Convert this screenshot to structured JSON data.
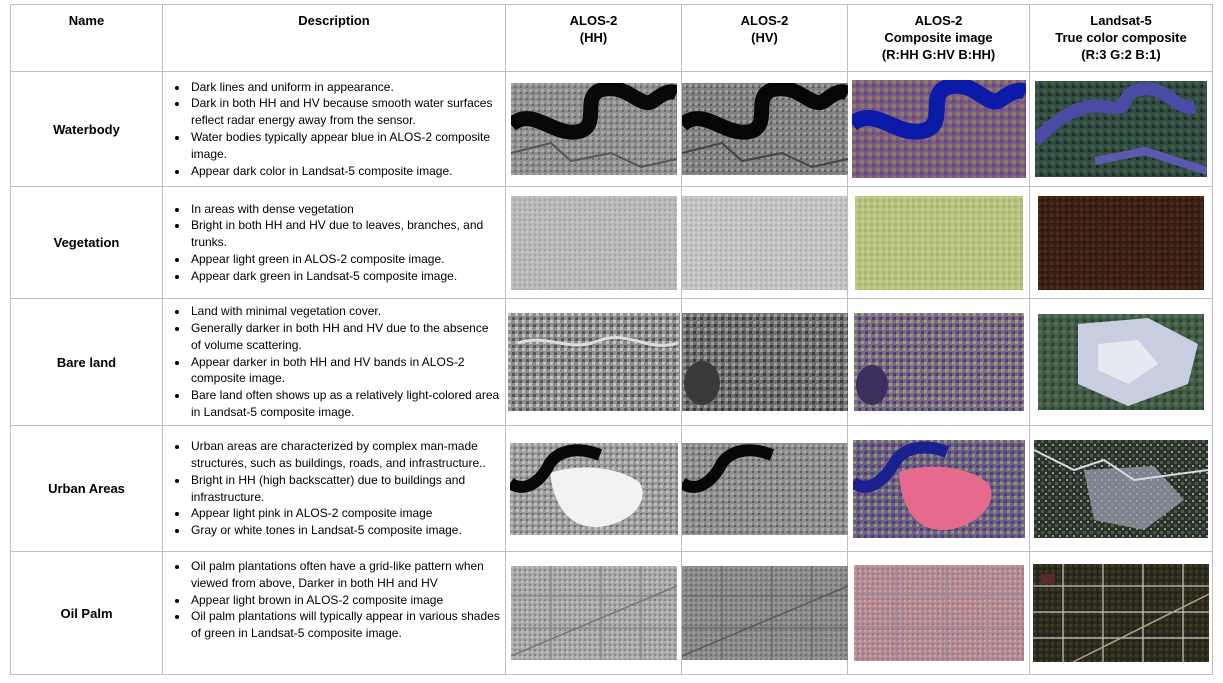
{
  "headers": {
    "name": "Name",
    "description": "Description",
    "hh": [
      "ALOS-2",
      "(HH)"
    ],
    "hv": [
      "ALOS-2",
      "(HV)"
    ],
    "composite": [
      "ALOS-2",
      "Composite image",
      "(R:HH G:HV B:HH)"
    ],
    "landsat": [
      "Landsat-5",
      "True color composite",
      "(R:3 G:2 B:1)"
    ]
  },
  "rows": [
    {
      "name": "Waterbody",
      "bullets": [
        "Dark lines and uniform in appearance.",
        "Dark in both HH and HV because smooth water surfaces reflect radar energy away from the sensor.",
        "Water bodies typically appear blue in  ALOS-2 composite image.",
        "Appear dark color in Landsat-5 composite image."
      ],
      "images": [
        "waterbody-hh-image",
        "waterbody-hv-image",
        "waterbody-composite-image",
        "waterbody-landsat-image"
      ]
    },
    {
      "name": "Vegetation",
      "bullets": [
        "In areas with dense vegetation",
        "Bright in both HH and HV due to leaves, branches, and trunks.",
        "Appear light green in ALOS-2 composite image.",
        "Appear dark green in Landsat-5 composite image."
      ],
      "images": [
        "vegetation-hh-image",
        "vegetation-hv-image",
        "vegetation-composite-image",
        "vegetation-landsat-image"
      ]
    },
    {
      "name": "Bare land",
      "bullets": [
        "Land with minimal vegetation cover.",
        "Generally darker in both HH and HV due to the absence of volume scattering.",
        "Appear darker in both HH and HV bands in  ALOS-2 composite image.",
        "Bare land often shows up as a relatively light-colored area in Landsat-5 composite image."
      ],
      "images": [
        "bare-land-hh-image",
        "bare-land-hv-image",
        "bare-land-composite-image",
        "bare-land-landsat-image"
      ]
    },
    {
      "name": "Urban Areas",
      "bullets": [
        "Urban areas are characterized by complex man-made structures, such as buildings, roads, and infrastructure..",
        "Bright in HH (high backscatter) due to buildings and infrastructure.",
        "Appear light pink  in ALOS-2 composite image",
        "Gray or white tones in Landsat-5 composite image."
      ],
      "images": [
        "urban-hh-image",
        "urban-hv-image",
        "urban-composite-image",
        "urban-landsat-image"
      ]
    },
    {
      "name": "Oil Palm",
      "bullets": [
        "Oil palm plantations often have a grid-like pattern when viewed from above, Darker in both HH and HV",
        "Appear light brown  in ALOS-2 composite image",
        "Oil palm plantations will typically appear in various shades of green in Landsat-5 composite image."
      ],
      "images": [
        "oil-palm-hh-image",
        "oil-palm-hv-image",
        "oil-palm-composite-image",
        "oil-palm-landsat-image"
      ]
    }
  ]
}
